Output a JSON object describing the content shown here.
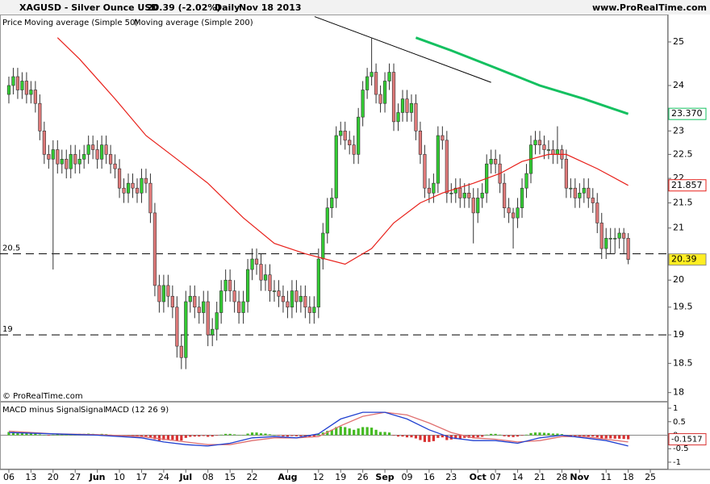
{
  "chart_data": [
    {
      "type": "candlestick",
      "title": "XAGUSD - Silver Ounce USD",
      "quote": "20.39 (-2.02%)",
      "period": "Daily",
      "date": "Nov 18 2013",
      "source": "www.ProRealTime.com",
      "copyright": "© ProRealTime.com",
      "name": "Price",
      "up_color": "#33cc33",
      "down_color": "#e07a7a",
      "log_scale": true,
      "xlim": [
        -2,
        149
      ],
      "ylim": [
        17.86,
        25.65
      ],
      "yticks": [
        18,
        18.5,
        19,
        19.5,
        20,
        21,
        21.5,
        22,
        22.5,
        23,
        24,
        25
      ],
      "xticks": [
        {
          "value": 0,
          "label": "06"
        },
        {
          "value": 5,
          "label": "13"
        },
        {
          "value": 10,
          "label": "20"
        },
        {
          "value": 15,
          "label": "27"
        },
        {
          "value": 20,
          "label": "Jun"
        },
        {
          "value": 25,
          "label": "10"
        },
        {
          "value": 30,
          "label": "17"
        },
        {
          "value": 35,
          "label": "24"
        },
        {
          "value": 40,
          "label": "Jul"
        },
        {
          "value": 45,
          "label": "08"
        },
        {
          "value": 50,
          "label": "15"
        },
        {
          "value": 55,
          "label": "22"
        },
        {
          "value": 63,
          "label": "Aug"
        },
        {
          "value": 70,
          "label": "12"
        },
        {
          "value": 75,
          "label": "19"
        },
        {
          "value": 80,
          "label": "26"
        },
        {
          "value": 85,
          "label": "Sep"
        },
        {
          "value": 90,
          "label": "09"
        },
        {
          "value": 95,
          "label": "16"
        },
        {
          "value": 100,
          "label": "23"
        },
        {
          "value": 106,
          "label": "Oct"
        },
        {
          "value": 110,
          "label": "07"
        },
        {
          "value": 115,
          "label": "14"
        },
        {
          "value": 120,
          "label": "21"
        },
        {
          "value": 125,
          "label": "28"
        },
        {
          "value": 129,
          "label": "Nov"
        },
        {
          "value": 135,
          "label": "11"
        },
        {
          "value": 140,
          "label": "18"
        },
        {
          "value": 145,
          "label": "25"
        }
      ],
      "open": [
        23.8,
        24.0,
        24.2,
        23.9,
        24.1,
        23.8,
        23.9,
        23.6,
        23.0,
        22.5,
        22.4,
        22.6,
        22.3,
        22.4,
        22.2,
        22.5,
        22.3,
        22.4,
        22.5,
        22.7,
        22.6,
        22.4,
        22.7,
        22.5,
        22.3,
        22.2,
        21.8,
        21.7,
        21.9,
        21.8,
        21.7,
        22.0,
        21.9,
        21.3,
        19.9,
        19.6,
        19.9,
        19.7,
        19.5,
        18.8,
        18.6,
        19.6,
        19.7,
        19.5,
        19.4,
        19.6,
        19.0,
        19.1,
        19.4,
        19.8,
        20.0,
        19.8,
        19.6,
        19.4,
        19.6,
        20.2,
        20.4,
        20.3,
        20.0,
        20.1,
        19.8,
        19.8,
        19.7,
        19.6,
        19.5,
        19.8,
        19.6,
        19.7,
        19.5,
        19.4,
        19.5,
        20.4,
        20.9,
        21.4,
        21.6,
        22.9,
        23.0,
        22.8,
        22.7,
        22.5,
        23.3,
        23.9,
        24.2,
        24.3,
        23.8,
        23.6,
        24.1,
        24.3,
        23.2,
        23.4,
        23.7,
        23.4,
        23.6,
        23.0,
        22.5,
        21.8,
        21.7,
        21.9,
        22.9,
        22.8,
        21.7,
        21.7,
        21.8,
        21.6,
        21.7,
        21.6,
        21.3,
        21.6,
        21.7,
        22.3,
        22.4,
        22.3,
        21.9,
        21.4,
        21.3,
        21.2,
        21.4,
        21.8,
        22.1,
        22.7,
        22.8,
        22.7,
        22.6,
        22.6,
        22.5,
        22.6,
        22.4,
        21.8,
        21.8,
        21.6,
        21.7,
        21.8,
        21.6,
        21.5,
        21.1,
        20.6,
        20.8,
        20.8,
        20.8,
        20.9,
        20.8
      ],
      "high": [
        24.2,
        24.4,
        24.4,
        24.3,
        24.3,
        24.1,
        24.1,
        23.8,
        23.2,
        22.7,
        22.8,
        22.8,
        22.6,
        22.6,
        22.7,
        22.7,
        22.6,
        22.7,
        22.9,
        22.9,
        22.8,
        22.9,
        22.9,
        22.7,
        22.5,
        22.4,
        22.0,
        22.1,
        22.1,
        22.0,
        22.2,
        22.2,
        22.1,
        21.5,
        20.1,
        20.1,
        20.1,
        19.9,
        19.7,
        19.0,
        19.8,
        19.9,
        19.9,
        19.7,
        19.8,
        19.8,
        19.3,
        19.6,
        20.0,
        20.2,
        20.2,
        20.0,
        19.8,
        19.8,
        20.4,
        20.6,
        20.6,
        20.5,
        20.3,
        20.3,
        20.0,
        20.0,
        19.9,
        19.8,
        20.0,
        20.0,
        19.9,
        19.9,
        19.7,
        19.7,
        20.6,
        21.1,
        21.6,
        21.8,
        23.1,
        23.2,
        23.2,
        23.0,
        22.9,
        23.5,
        24.1,
        24.4,
        25.1,
        24.5,
        24.0,
        24.3,
        24.5,
        24.5,
        23.6,
        23.9,
        23.9,
        23.8,
        23.8,
        23.2,
        22.7,
        22.0,
        22.1,
        23.1,
        23.1,
        23.0,
        21.9,
        22.0,
        22.0,
        21.9,
        21.9,
        21.8,
        21.8,
        21.9,
        22.5,
        22.6,
        22.6,
        22.5,
        22.1,
        21.6,
        21.4,
        21.6,
        22.0,
        22.3,
        22.9,
        23.0,
        23.0,
        22.9,
        22.8,
        22.8,
        23.1,
        22.7,
        22.6,
        22.0,
        22.0,
        21.9,
        22.0,
        22.0,
        21.8,
        21.7,
        21.3,
        21.0,
        21.0,
        21.0,
        21.0,
        21.0,
        20.9
      ],
      "low": [
        23.6,
        23.8,
        23.7,
        23.7,
        23.6,
        23.6,
        23.4,
        22.8,
        22.3,
        22.2,
        20.2,
        22.1,
        22.1,
        22.0,
        22.0,
        22.1,
        22.1,
        22.2,
        22.3,
        22.4,
        22.2,
        22.2,
        22.3,
        22.1,
        22.0,
        21.6,
        21.5,
        21.5,
        21.6,
        21.5,
        21.5,
        21.7,
        21.1,
        19.7,
        19.4,
        19.4,
        19.5,
        19.3,
        18.6,
        18.4,
        18.4,
        19.4,
        19.3,
        19.2,
        19.2,
        18.8,
        18.8,
        18.9,
        19.2,
        19.6,
        19.6,
        19.4,
        19.2,
        19.2,
        19.4,
        20.0,
        20.1,
        19.8,
        19.8,
        19.6,
        19.6,
        19.5,
        19.4,
        19.3,
        19.3,
        19.4,
        19.4,
        19.3,
        19.2,
        19.2,
        19.3,
        20.2,
        20.7,
        21.2,
        21.4,
        22.7,
        22.6,
        22.5,
        22.3,
        22.3,
        23.1,
        23.7,
        24.0,
        23.6,
        23.4,
        23.4,
        23.9,
        23.0,
        23.0,
        23.2,
        23.2,
        23.2,
        22.8,
        22.3,
        21.6,
        21.5,
        21.5,
        21.7,
        22.6,
        21.5,
        21.5,
        21.5,
        21.4,
        21.4,
        21.4,
        20.7,
        21.1,
        21.4,
        21.5,
        22.1,
        22.1,
        21.7,
        21.2,
        21.1,
        20.6,
        21.0,
        21.2,
        21.6,
        21.9,
        22.5,
        22.5,
        22.4,
        22.4,
        22.3,
        22.3,
        22.2,
        21.6,
        21.6,
        21.4,
        21.4,
        21.5,
        21.4,
        21.3,
        20.9,
        20.4,
        20.4,
        20.5,
        20.5,
        20.6,
        20.5,
        20.3
      ],
      "close": [
        24.0,
        24.2,
        23.9,
        24.1,
        23.8,
        23.9,
        23.6,
        23.0,
        22.5,
        22.4,
        22.6,
        22.3,
        22.4,
        22.2,
        22.5,
        22.3,
        22.4,
        22.5,
        22.7,
        22.6,
        22.4,
        22.7,
        22.5,
        22.3,
        22.2,
        21.8,
        21.7,
        21.9,
        21.8,
        21.7,
        22.0,
        21.9,
        21.3,
        19.9,
        19.6,
        19.9,
        19.7,
        19.5,
        18.8,
        18.6,
        19.6,
        19.7,
        19.5,
        19.4,
        19.6,
        19.0,
        19.1,
        19.4,
        19.8,
        20.0,
        19.8,
        19.6,
        19.4,
        19.6,
        20.2,
        20.4,
        20.3,
        20.0,
        20.1,
        19.8,
        19.8,
        19.7,
        19.6,
        19.5,
        19.8,
        19.6,
        19.7,
        19.5,
        19.4,
        19.5,
        20.4,
        20.9,
        21.4,
        21.6,
        22.9,
        23.0,
        22.8,
        22.7,
        22.5,
        23.3,
        23.9,
        24.2,
        24.3,
        23.8,
        23.6,
        24.1,
        24.3,
        23.2,
        23.4,
        23.7,
        23.4,
        23.6,
        23.0,
        22.5,
        21.8,
        21.7,
        21.9,
        22.9,
        22.8,
        21.7,
        21.7,
        21.8,
        21.6,
        21.7,
        21.6,
        21.3,
        21.6,
        21.7,
        22.3,
        22.4,
        22.3,
        21.9,
        21.4,
        21.3,
        21.2,
        21.4,
        21.8,
        22.1,
        22.7,
        22.8,
        22.7,
        22.6,
        22.6,
        22.5,
        22.6,
        22.4,
        21.8,
        21.8,
        21.6,
        21.7,
        21.8,
        21.6,
        21.5,
        21.1,
        20.6,
        20.8,
        20.8,
        20.8,
        20.9,
        20.8,
        20.39
      ],
      "series": [
        {
          "name": "Moving average (Simple 50)",
          "color": "#e8201a",
          "x": [
            11,
            16,
            24,
            31,
            38,
            45,
            53,
            60,
            67,
            76,
            82,
            87,
            93,
            98,
            105,
            111,
            116,
            122,
            126,
            133,
            140
          ],
          "values": [
            25.1,
            24.6,
            23.7,
            22.9,
            22.4,
            21.9,
            21.2,
            20.7,
            20.5,
            20.3,
            20.6,
            21.1,
            21.5,
            21.7,
            21.9,
            22.1,
            22.35,
            22.5,
            22.5,
            22.2,
            21.857
          ]
        },
        {
          "name": "Moving average (Simple 200)",
          "color": "#14c060",
          "x": [
            92,
            100,
            110,
            120,
            130,
            140
          ],
          "values": [
            25.1,
            24.8,
            24.4,
            24.0,
            23.7,
            23.37
          ],
          "value_labels": [
            null,
            null,
            null,
            null,
            null,
            "23.370"
          ]
        }
      ],
      "levels": [
        20.5,
        19
      ],
      "trendline": {
        "color": "#000000",
        "x": [
          69.1,
          109
        ],
        "values": [
          25.6,
          24.07
        ]
      }
    },
    {
      "type": "macd",
      "ylim": [
        -1.24,
        1.24
      ],
      "yticks": [
        -1,
        -0.5,
        0,
        0.5,
        1
      ],
      "histogram": {
        "name": "MACD minus Signal",
        "color": "#d85050",
        "up_color": "#44bb22",
        "down_color": "#d83030",
        "values": [
          0.12,
          0.12,
          0.1,
          0.1,
          0.08,
          0.08,
          0.06,
          0.03,
          0.0,
          -0.02,
          0.02,
          0.03,
          0.04,
          0.03,
          0.05,
          0.04,
          0.05,
          0.05,
          0.06,
          0.05,
          0.03,
          0.05,
          0.04,
          0.02,
          0.0,
          -0.03,
          -0.05,
          -0.04,
          -0.05,
          -0.06,
          -0.04,
          -0.05,
          -0.08,
          -0.15,
          -0.2,
          -0.18,
          -0.17,
          -0.17,
          -0.2,
          -0.2,
          -0.1,
          -0.06,
          -0.05,
          -0.05,
          -0.03,
          -0.06,
          -0.05,
          -0.02,
          0.02,
          0.05,
          0.05,
          0.03,
          0.0,
          0.01,
          0.06,
          0.1,
          0.1,
          0.07,
          0.06,
          0.03,
          0.01,
          -0.02,
          -0.04,
          -0.05,
          -0.03,
          -0.04,
          -0.04,
          -0.06,
          -0.07,
          -0.05,
          0.04,
          0.1,
          0.16,
          0.2,
          0.3,
          0.32,
          0.3,
          0.25,
          0.2,
          0.25,
          0.3,
          0.3,
          0.28,
          0.2,
          0.12,
          0.12,
          0.1,
          -0.02,
          -0.05,
          -0.05,
          -0.08,
          -0.08,
          -0.12,
          -0.18,
          -0.25,
          -0.25,
          -0.22,
          -0.1,
          -0.08,
          -0.18,
          -0.16,
          -0.14,
          -0.13,
          -0.1,
          -0.1,
          -0.11,
          -0.08,
          -0.06,
          0.02,
          0.05,
          0.05,
          0.02,
          -0.04,
          -0.06,
          -0.07,
          -0.05,
          -0.02,
          0.02,
          0.08,
          0.1,
          0.1,
          0.09,
          0.08,
          0.06,
          0.06,
          0.04,
          -0.02,
          -0.03,
          -0.05,
          -0.04,
          -0.03,
          -0.05,
          -0.05,
          -0.08,
          -0.12,
          -0.12,
          -0.12,
          -0.13,
          -0.13,
          -0.14,
          -0.1517
        ]
      },
      "series": [
        {
          "name": "Signal",
          "color": "#e07070",
          "x": [
            0,
            10,
            20,
            30,
            35,
            40,
            45,
            50,
            55,
            60,
            65,
            70,
            75,
            80,
            85,
            90,
            95,
            100,
            105,
            110,
            115,
            120,
            125,
            130,
            135,
            140
          ],
          "values": [
            0.15,
            0.05,
            0.02,
            -0.05,
            -0.15,
            -0.25,
            -0.35,
            -0.35,
            -0.2,
            -0.1,
            -0.1,
            -0.05,
            0.35,
            0.7,
            0.85,
            0.75,
            0.45,
            0.1,
            -0.1,
            -0.15,
            -0.25,
            -0.2,
            -0.05,
            -0.05,
            -0.15,
            -0.25
          ]
        },
        {
          "name": "MACD (12 26 9)",
          "color": "#2040d0",
          "x": [
            0,
            10,
            20,
            30,
            35,
            40,
            45,
            50,
            55,
            60,
            65,
            70,
            75,
            80,
            85,
            90,
            95,
            100,
            105,
            110,
            115,
            120,
            125,
            130,
            135,
            140
          ],
          "values": [
            0.1,
            0.05,
            0.0,
            -0.1,
            -0.25,
            -0.35,
            -0.4,
            -0.3,
            -0.1,
            -0.05,
            -0.1,
            0.05,
            0.6,
            0.85,
            0.85,
            0.6,
            0.2,
            -0.1,
            -0.2,
            -0.2,
            -0.3,
            -0.1,
            0.0,
            -0.1,
            -0.2,
            -0.4
          ]
        }
      ]
    }
  ]
}
